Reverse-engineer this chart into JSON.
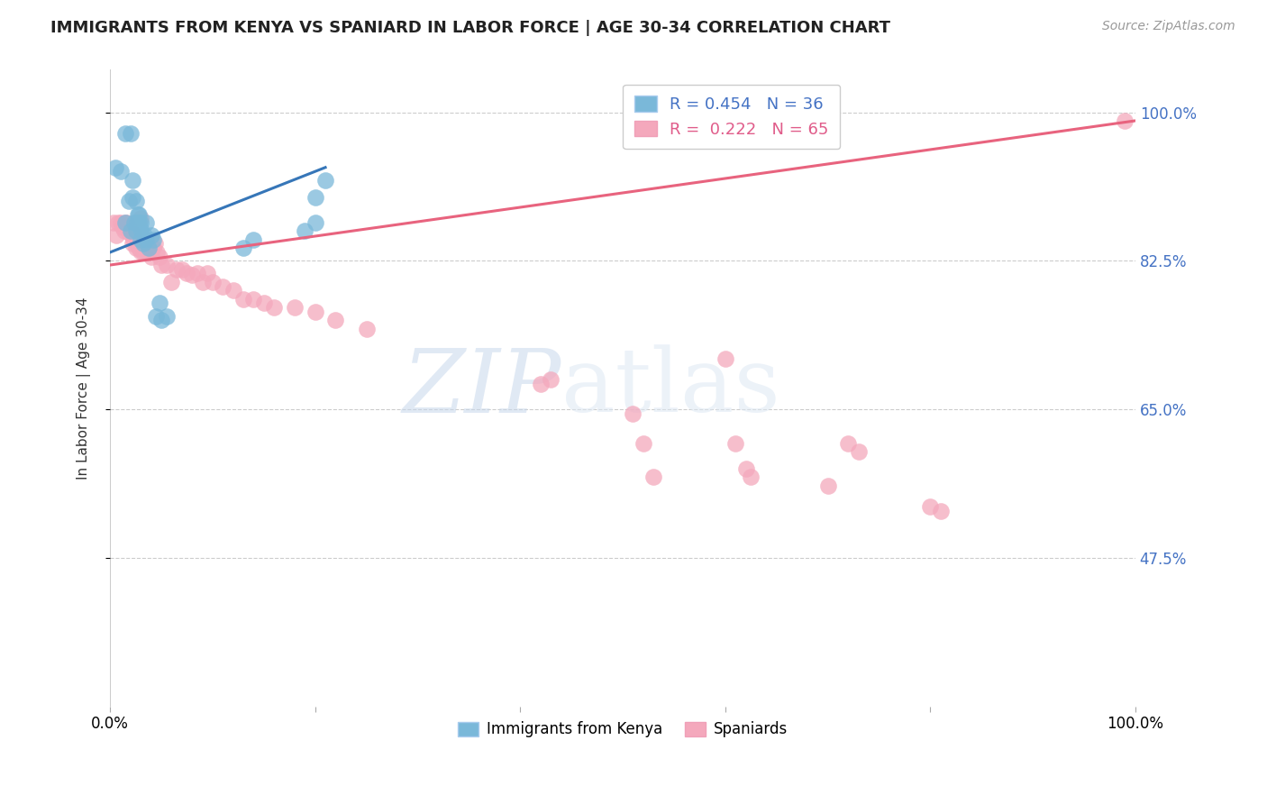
{
  "title": "IMMIGRANTS FROM KENYA VS SPANIARD IN LABOR FORCE | AGE 30-34 CORRELATION CHART",
  "source": "Source: ZipAtlas.com",
  "ylabel": "In Labor Force | Age 30-34",
  "xlim": [
    0,
    1.0
  ],
  "ylim": [
    0.3,
    1.05
  ],
  "yticks": [
    0.475,
    0.65,
    0.825,
    1.0
  ],
  "ytick_labels": [
    "47.5%",
    "65.0%",
    "82.5%",
    "100.0%"
  ],
  "xtick_vals": [
    0.0,
    0.2,
    0.4,
    0.6,
    0.8,
    1.0
  ],
  "xtick_labels": [
    "0.0%",
    "",
    "",
    "",
    "",
    "100.0%"
  ],
  "kenya_color": "#7ab8d9",
  "spaniard_color": "#f4a8bc",
  "kenya_line_color": "#3676b8",
  "spaniard_line_color": "#e8637e",
  "watermark_zip": "ZIP",
  "watermark_atlas": "atlas",
  "kenya_x": [
    0.005,
    0.01,
    0.015,
    0.015,
    0.018,
    0.02,
    0.02,
    0.022,
    0.022,
    0.024,
    0.025,
    0.025,
    0.026,
    0.027,
    0.028,
    0.028,
    0.03,
    0.03,
    0.03,
    0.032,
    0.033,
    0.035,
    0.035,
    0.038,
    0.04,
    0.042,
    0.045,
    0.048,
    0.05,
    0.055,
    0.13,
    0.14,
    0.19,
    0.2,
    0.2,
    0.21
  ],
  "kenya_y": [
    0.935,
    0.93,
    0.975,
    0.87,
    0.895,
    0.975,
    0.86,
    0.9,
    0.92,
    0.87,
    0.86,
    0.895,
    0.87,
    0.88,
    0.87,
    0.88,
    0.85,
    0.862,
    0.87,
    0.845,
    0.855,
    0.85,
    0.87,
    0.84,
    0.855,
    0.85,
    0.76,
    0.775,
    0.755,
    0.76,
    0.84,
    0.85,
    0.86,
    0.87,
    0.9,
    0.92
  ],
  "spaniard_x": [
    0.003,
    0.006,
    0.008,
    0.01,
    0.012,
    0.014,
    0.015,
    0.016,
    0.018,
    0.02,
    0.022,
    0.023,
    0.024,
    0.025,
    0.026,
    0.028,
    0.03,
    0.03,
    0.032,
    0.034,
    0.035,
    0.036,
    0.038,
    0.04,
    0.042,
    0.044,
    0.046,
    0.048,
    0.05,
    0.055,
    0.06,
    0.065,
    0.07,
    0.075,
    0.08,
    0.085,
    0.09,
    0.095,
    0.1,
    0.11,
    0.12,
    0.13,
    0.14,
    0.15,
    0.16,
    0.18,
    0.2,
    0.22,
    0.25,
    0.42,
    0.43,
    0.51,
    0.52,
    0.53,
    0.6,
    0.61,
    0.62,
    0.625,
    0.7,
    0.72,
    0.73,
    0.8,
    0.81,
    0.99
  ],
  "spaniard_y": [
    0.87,
    0.855,
    0.87,
    0.87,
    0.865,
    0.86,
    0.87,
    0.87,
    0.858,
    0.86,
    0.845,
    0.85,
    0.856,
    0.84,
    0.845,
    0.84,
    0.836,
    0.875,
    0.835,
    0.84,
    0.835,
    0.84,
    0.835,
    0.83,
    0.84,
    0.845,
    0.835,
    0.83,
    0.82,
    0.82,
    0.8,
    0.815,
    0.815,
    0.81,
    0.808,
    0.81,
    0.8,
    0.81,
    0.8,
    0.795,
    0.79,
    0.78,
    0.78,
    0.775,
    0.77,
    0.77,
    0.765,
    0.755,
    0.745,
    0.68,
    0.685,
    0.645,
    0.61,
    0.57,
    0.71,
    0.61,
    0.58,
    0.57,
    0.56,
    0.61,
    0.6,
    0.535,
    0.53,
    0.99
  ],
  "kenya_line_x": [
    0.0,
    0.21
  ],
  "kenya_line_y": [
    0.835,
    0.935
  ],
  "spaniard_line_x": [
    0.0,
    1.0
  ],
  "spaniard_line_y": [
    0.82,
    0.99
  ]
}
